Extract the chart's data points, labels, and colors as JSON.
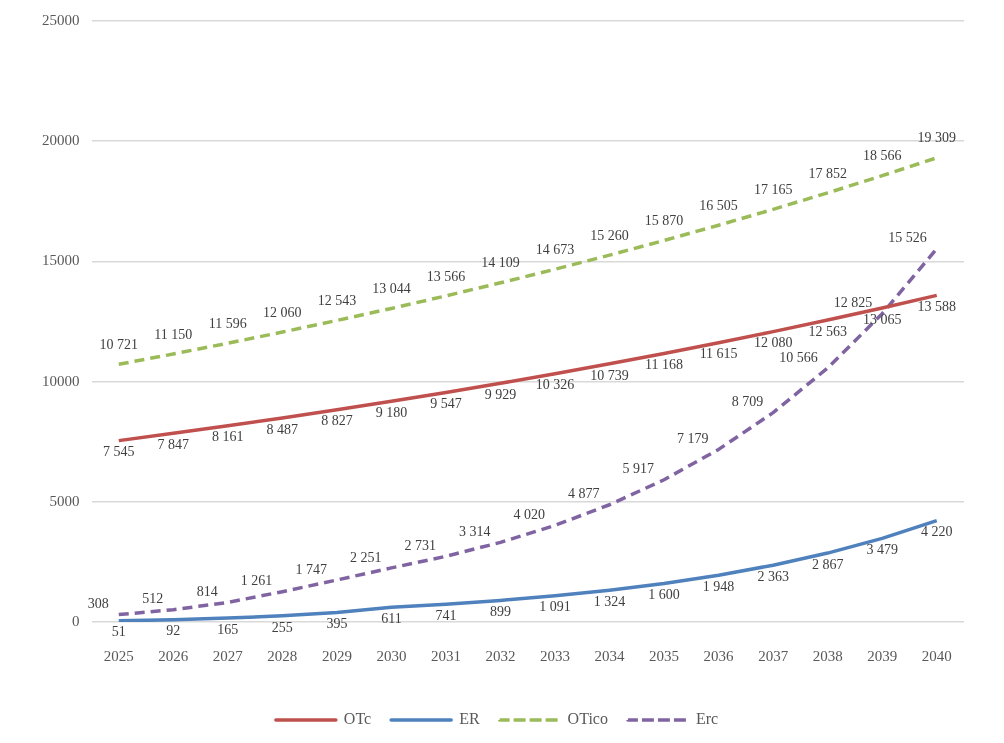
{
  "chart_data": {
    "type": "line",
    "categories": [
      "2025",
      "2026",
      "2027",
      "2028",
      "2029",
      "2030",
      "2031",
      "2032",
      "2033",
      "2034",
      "2035",
      "2036",
      "2037",
      "2038",
      "2039",
      "2040"
    ],
    "ylim": [
      0,
      25000
    ],
    "yticks": [
      0,
      5000,
      10000,
      15000,
      20000,
      25000
    ],
    "grid": "y",
    "legend": "bottom",
    "marker": "none",
    "series": [
      {
        "name": "OTc",
        "color": "#c0504d",
        "line_style": "solid",
        "values": [
          7545,
          7847,
          8161,
          8487,
          8827,
          9180,
          9547,
          9929,
          10326,
          10739,
          11168,
          11615,
          12080,
          12563,
          13065,
          13588
        ],
        "value_labels": [
          "7 545",
          "7 847",
          "8 161",
          "8 487",
          "8 827",
          "9 180",
          "9 547",
          "9 929",
          "10 326",
          "10 739",
          "11 168",
          "11 615",
          "12 080",
          "12 563",
          "13 065",
          "13 588"
        ]
      },
      {
        "name": "ER",
        "color": "#4f81bd",
        "line_style": "solid",
        "values": [
          51,
          92,
          165,
          255,
          395,
          611,
          741,
          899,
          1091,
          1324,
          1600,
          1948,
          2363,
          2867,
          3479,
          4220
        ],
        "value_labels": [
          "51",
          "92",
          "165",
          "255",
          "395",
          "611",
          "741",
          "899",
          "1 091",
          "1 324",
          "1 600",
          "1 948",
          "2 363",
          "2 867",
          "3 479",
          "4 220"
        ]
      },
      {
        "name": "OTico",
        "color": "#9bbb59",
        "line_style": "dashed",
        "values": [
          10721,
          11150,
          11596,
          12060,
          12543,
          13044,
          13566,
          14109,
          14673,
          15260,
          15870,
          16505,
          17165,
          17852,
          18566,
          19309
        ],
        "value_labels": [
          "10 721",
          "11 150",
          "11 596",
          "12 060",
          "12 543",
          "13 044",
          "13 566",
          "14 109",
          "14 673",
          "15 260",
          "15 870",
          "16 505",
          "17 165",
          "17 852",
          "18 566",
          "19 309"
        ]
      },
      {
        "name": "Erc",
        "color": "#8064a2",
        "line_style": "dashed",
        "values": [
          308,
          512,
          814,
          1261,
          1747,
          2251,
          2731,
          3314,
          4020,
          4877,
          5917,
          7179,
          8709,
          10566,
          12825,
          15526
        ],
        "value_labels": [
          "308",
          "512",
          "814",
          "1 261",
          "1 747",
          "2 251",
          "2 731",
          "3 314",
          "4 020",
          "4 877",
          "5 917",
          "7 179",
          "8 709",
          "10 566",
          "12 825",
          "15 526"
        ]
      }
    ]
  }
}
